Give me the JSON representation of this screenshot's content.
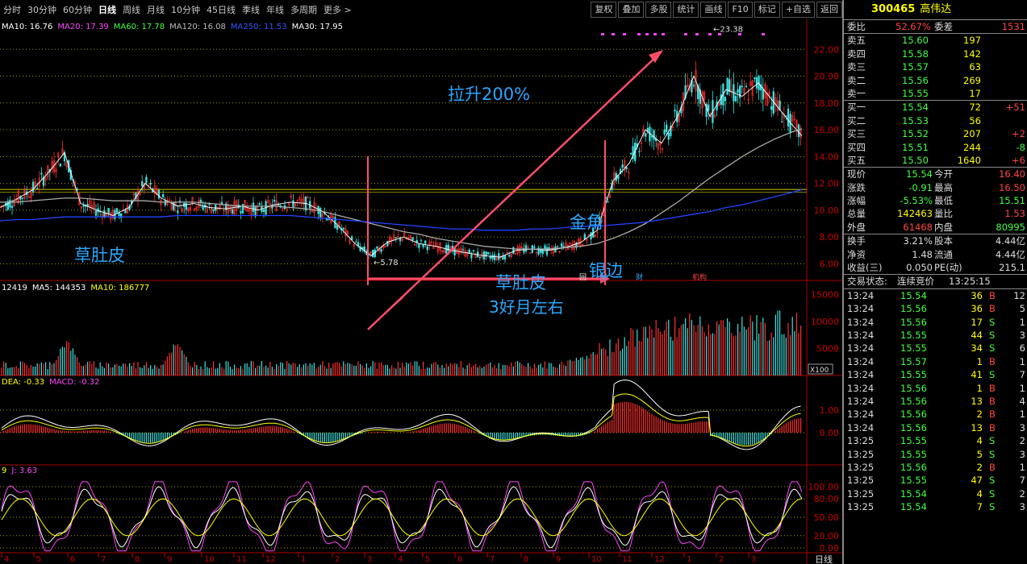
{
  "toolbar": {
    "periods": [
      "分时",
      "30分钟",
      "60分钟",
      "日线",
      "周线",
      "月线",
      "10分钟",
      "45日线",
      "季线",
      "年线",
      "多周期",
      "更多 >"
    ],
    "active_period": "日线",
    "tools": [
      "复权",
      "叠加",
      "多股",
      "统计",
      "画线",
      "F10",
      "标记",
      "+自选",
      "返回"
    ]
  },
  "main_panel": {
    "ma_labels": [
      {
        "text": "MA10: 16.76",
        "color": "#ffffff"
      },
      {
        "text": "MA20: 17.39",
        "color": "#ff44ff"
      },
      {
        "text": "MA60: 17.78",
        "color": "#44ff44"
      },
      {
        "text": "MA120: 16.08",
        "color": "#bbbbbb"
      },
      {
        "text": "MA250: 11.53",
        "color": "#3355ff"
      },
      {
        "text": "MA30: 17.95",
        "color": "#ffffff"
      }
    ],
    "y_ticks": [
      "22.00",
      "20.00",
      "18.00",
      "16.00",
      "14.00",
      "12.00",
      "10.00",
      "8.00",
      "6.00"
    ],
    "high_label": "23.38",
    "low_label": "5.78",
    "event_tags": [
      "回",
      "财",
      "财",
      "机构"
    ]
  },
  "volume_panel": {
    "labels": [
      {
        "text": "12419",
        "color": "#ffffff"
      },
      {
        "text": "MA5: 144353",
        "color": "#ffffff"
      },
      {
        "text": "MA10: 186777",
        "color": "#ffff00"
      }
    ],
    "y_ticks": [
      "15000",
      "10000",
      "5000"
    ],
    "unit": "X100"
  },
  "macd_panel": {
    "labels": [
      {
        "text": "DEA: -0.33",
        "color": "#ffff00"
      },
      {
        "text": "MACD: -0.32",
        "color": "#ff44ff"
      }
    ],
    "y_ticks": [
      "1.00",
      "0.00"
    ]
  },
  "kdj_panel": {
    "labels": [
      {
        "text": "9",
        "color": "#ffff00"
      },
      {
        "text": "J: 3.63",
        "color": "#ff44ff"
      }
    ],
    "y_ticks": [
      "100.00",
      "80.00",
      "50.00",
      "20.00",
      "0.00"
    ]
  },
  "x_axis": {
    "months": [
      "4",
      "5",
      "6",
      "7",
      "8",
      "9",
      "10",
      "11",
      "12",
      "1",
      "2",
      "3",
      "4",
      "5",
      "6",
      "7",
      "8",
      "9",
      "10",
      "11",
      "12",
      "1",
      "2",
      "3"
    ],
    "mode_label": "日线"
  },
  "annotations": {
    "lift": "拉升200%",
    "grass_left": "草肚皮",
    "golden_corner": "金角",
    "silver_edge": "银边",
    "grass_mid": "草肚皮",
    "duration": "3好月左右"
  },
  "stock": {
    "code": "300465",
    "name": "高伟达"
  },
  "order_book": {
    "weibi_label": "委比",
    "weibi": "52.67%",
    "weicha_label": "委差",
    "weicha": "1531",
    "asks": [
      {
        "label": "卖五",
        "price": "15.60",
        "vol": "197",
        "chg": ""
      },
      {
        "label": "卖四",
        "price": "15.58",
        "vol": "142",
        "chg": ""
      },
      {
        "label": "卖三",
        "price": "15.57",
        "vol": "63",
        "chg": ""
      },
      {
        "label": "卖二",
        "price": "15.56",
        "vol": "269",
        "chg": ""
      },
      {
        "label": "卖一",
        "price": "15.55",
        "vol": "17",
        "chg": ""
      }
    ],
    "bids": [
      {
        "label": "买一",
        "price": "15.54",
        "vol": "72",
        "chg": "+51"
      },
      {
        "label": "买二",
        "price": "15.53",
        "vol": "56",
        "chg": ""
      },
      {
        "label": "买三",
        "price": "15.52",
        "vol": "207",
        "chg": "+2"
      },
      {
        "label": "买四",
        "price": "15.51",
        "vol": "244",
        "chg": "-8"
      },
      {
        "label": "买五",
        "price": "15.50",
        "vol": "1640",
        "chg": "+6"
      }
    ]
  },
  "quote": [
    {
      "l1": "现价",
      "v1": "15.54",
      "c1": "#44ff44",
      "l2": "今开",
      "v2": "16.40",
      "c2": "#ff4444"
    },
    {
      "l1": "涨跌",
      "v1": "-0.91",
      "c1": "#44ff44",
      "l2": "最高",
      "v2": "16.50",
      "c2": "#ff4444"
    },
    {
      "l1": "涨幅",
      "v1": "-5.53%",
      "c1": "#44ff44",
      "l2": "最低",
      "v2": "15.51",
      "c2": "#44ff44"
    },
    {
      "l1": "总量",
      "v1": "142463",
      "c1": "#ffff00",
      "l2": "量比",
      "v2": "1.53",
      "c2": "#ff4444"
    },
    {
      "l1": "外盘",
      "v1": "61468",
      "c1": "#ff4444",
      "l2": "内盘",
      "v2": "80995",
      "c2": "#44ff44"
    }
  ],
  "fundamentals": [
    {
      "l1": "换手",
      "v1": "3.21%",
      "l2": "股本",
      "v2": "4.44亿"
    },
    {
      "l1": "净资",
      "v1": "1.48",
      "l2": "流通",
      "v2": "4.44亿"
    },
    {
      "l1": "收益(三)",
      "v1": "0.050",
      "l2": "PE(动)",
      "v2": "215.1"
    }
  ],
  "trade_status": {
    "label": "交易状态:",
    "value": "连续竞价",
    "time": "13:25:15"
  },
  "ticks": [
    {
      "t": "13:24",
      "p": "15.54",
      "v": "36",
      "d": "B",
      "n": "12"
    },
    {
      "t": "13:24",
      "p": "15.56",
      "v": "36",
      "d": "B",
      "n": "5"
    },
    {
      "t": "13:24",
      "p": "15.56",
      "v": "17",
      "d": "S",
      "n": "1"
    },
    {
      "t": "13:24",
      "p": "15.55",
      "v": "44",
      "d": "S",
      "n": "3"
    },
    {
      "t": "13:24",
      "p": "15.55",
      "v": "34",
      "d": "S",
      "n": "6"
    },
    {
      "t": "13:24",
      "p": "15.57",
      "v": "1",
      "d": "B",
      "n": "1"
    },
    {
      "t": "13:24",
      "p": "15.55",
      "v": "41",
      "d": "S",
      "n": "7"
    },
    {
      "t": "13:24",
      "p": "15.56",
      "v": "1",
      "d": "B",
      "n": "1"
    },
    {
      "t": "13:24",
      "p": "15.56",
      "v": "13",
      "d": "B",
      "n": "4"
    },
    {
      "t": "13:24",
      "p": "15.56",
      "v": "2",
      "d": "B",
      "n": "1"
    },
    {
      "t": "13:24",
      "p": "15.56",
      "v": "13",
      "d": "B",
      "n": "3"
    },
    {
      "t": "13:25",
      "p": "15.55",
      "v": "4",
      "d": "S",
      "n": "2"
    },
    {
      "t": "13:25",
      "p": "15.55",
      "v": "5",
      "d": "S",
      "n": "3"
    },
    {
      "t": "13:25",
      "p": "15.56",
      "v": "2",
      "d": "B",
      "n": "1"
    },
    {
      "t": "13:25",
      "p": "15.55",
      "v": "47",
      "d": "S",
      "n": "7"
    },
    {
      "t": "13:25",
      "p": "15.54",
      "v": "4",
      "d": "S",
      "n": "2"
    },
    {
      "t": "13:25",
      "p": "15.54",
      "v": "7",
      "d": "S",
      "n": "3"
    }
  ],
  "chart_data": {
    "type": "line",
    "title": "",
    "xlabel": "",
    "ylabel": "",
    "ylim": [
      5,
      24
    ],
    "x": [
      0,
      20,
      40,
      60,
      80,
      100,
      120,
      140,
      160,
      180,
      200,
      220,
      240,
      260,
      280,
      300,
      320,
      340,
      360,
      380,
      400,
      420,
      440,
      460,
      480,
      500,
      520,
      540,
      560,
      580,
      600,
      620,
      640,
      660,
      680,
      700,
      720,
      740,
      760,
      780,
      800,
      820,
      840,
      860,
      880,
      900,
      920,
      940,
      960,
      980,
      994
    ],
    "series": [
      {
        "name": "close",
        "values": [
          10.2,
          10.8,
          11.5,
          12.8,
          14.3,
          10.5,
          10.0,
          9.6,
          10.2,
          12.0,
          10.9,
          10.3,
          10.5,
          10.2,
          10.1,
          10.3,
          10.0,
          10.4,
          10.6,
          10.5,
          9.9,
          8.8,
          7.5,
          6.6,
          7.6,
          8.0,
          7.5,
          7.3,
          7.0,
          6.8,
          6.6,
          6.5,
          7.0,
          7.1,
          7.0,
          7.2,
          7.6,
          8.5,
          12.2,
          13.5,
          16.0,
          15.0,
          17.0,
          20.0,
          17.0,
          19.0,
          18.5,
          19.5,
          18.0,
          16.5,
          15.54
        ]
      },
      {
        "name": "MA120",
        "values": [
          10.6,
          10.6,
          10.7,
          10.8,
          10.9,
          10.9,
          10.8,
          10.7,
          10.7,
          10.7,
          10.6,
          10.6,
          10.6,
          10.5,
          10.4,
          10.3,
          10.3,
          10.3,
          10.2,
          10.1,
          9.9,
          9.6,
          9.3,
          9.0,
          8.7,
          8.4,
          8.2,
          7.9,
          7.7,
          7.5,
          7.3,
          7.2,
          7.1,
          7.1,
          7.1,
          7.2,
          7.3,
          7.5,
          7.9,
          8.4,
          9.0,
          9.8,
          10.6,
          11.5,
          12.4,
          13.2,
          14.0,
          14.7,
          15.3,
          15.8,
          16.08
        ]
      },
      {
        "name": "MA250",
        "values": [
          9.2,
          9.3,
          9.3,
          9.4,
          9.5,
          9.5,
          9.5,
          9.5,
          9.5,
          9.5,
          9.5,
          9.6,
          9.6,
          9.6,
          9.6,
          9.6,
          9.6,
          9.6,
          9.6,
          9.5,
          9.4,
          9.3,
          9.2,
          9.1,
          9.0,
          8.9,
          8.8,
          8.7,
          8.6,
          8.6,
          8.5,
          8.5,
          8.5,
          8.6,
          8.6,
          8.7,
          8.8,
          8.8,
          8.9,
          9.0,
          9.1,
          9.3,
          9.5,
          9.7,
          9.9,
          10.2,
          10.4,
          10.7,
          11.0,
          11.3,
          11.53
        ]
      }
    ]
  }
}
